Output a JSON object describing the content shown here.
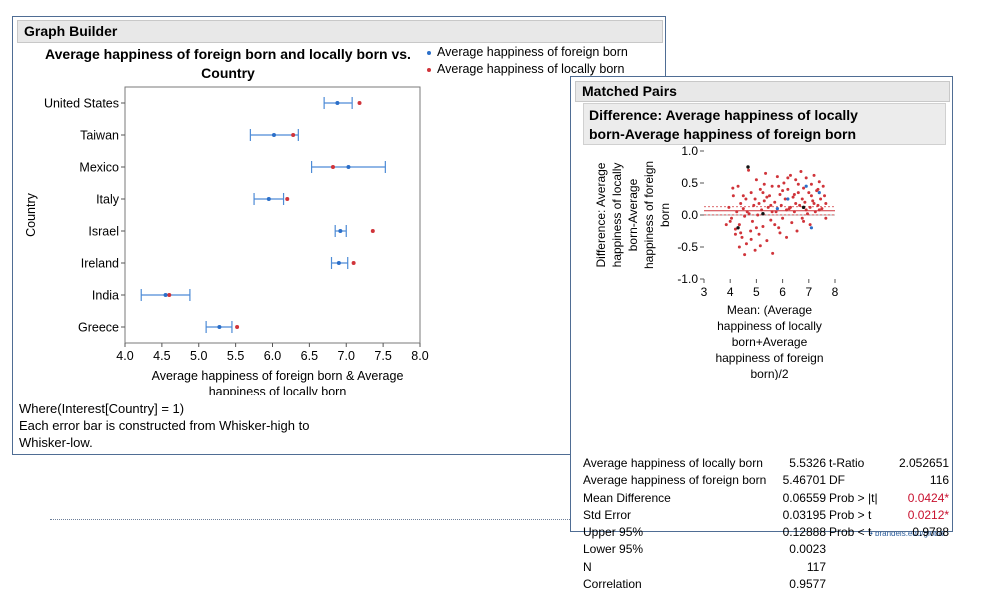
{
  "graph_builder": {
    "header": "Graph Builder",
    "title_line1": "Average happiness of foreign born and locally born vs.",
    "title_line2": "Country",
    "legend": [
      {
        "label": "Average happiness of foreign born",
        "color": "#2b6fc9"
      },
      {
        "label": "Average happiness of locally born",
        "color": "#d0343a"
      }
    ],
    "where_text": "Where(Interest[Country] = 1)",
    "note_line1": "Each error bar is constructed from Whisker-high to",
    "note_line2": "Whisker-low."
  },
  "matched_pairs": {
    "header": "Matched Pairs",
    "subtitle_line1": "Difference: Average happiness of locally",
    "subtitle_line2": "born-Average happiness of foreign born",
    "stats": [
      {
        "label": "Average happiness of locally born",
        "value": "5.5326",
        "label2": "t-Ratio",
        "value2": "2.052651",
        "red": false
      },
      {
        "label": "Average happiness of foreign born",
        "value": "5.46701",
        "label2": "DF",
        "value2": "116",
        "red": false
      },
      {
        "label": "Mean Difference",
        "value": "0.06559",
        "label2": "Prob > |t|",
        "value2": "0.0424*",
        "red": true
      },
      {
        "label": "Std Error",
        "value": "0.03195",
        "label2": "Prob > t",
        "value2": "0.0212*",
        "red": true
      },
      {
        "label": "Upper 95%",
        "value": "0.12888",
        "label2": "Prob < t",
        "value2": "0.9788",
        "red": false
      },
      {
        "label": "Lower 95%",
        "value": "0.0023",
        "label2": "",
        "value2": "",
        "red": false
      },
      {
        "label": "N",
        "value": "117",
        "label2": "",
        "value2": "",
        "red": false
      },
      {
        "label": "Correlation",
        "value": "0.9577",
        "label2": "",
        "value2": "",
        "red": false
      }
    ]
  },
  "footer": "• brandeis.edu/global",
  "chart_data": [
    {
      "type": "scatter",
      "orientation": "horizontal-dot-with-error-bars",
      "categories": [
        "United States",
        "Taiwan",
        "Mexico",
        "Italy",
        "Israel",
        "Ireland",
        "India",
        "Greece"
      ],
      "series": [
        {
          "name": "Average happiness of foreign born",
          "values": [
            6.88,
            6.02,
            7.03,
            5.95,
            6.92,
            6.9,
            4.55,
            5.28
          ],
          "whisker_low": [
            6.7,
            5.7,
            6.53,
            5.75,
            6.85,
            6.8,
            4.22,
            5.1
          ],
          "whisker_high": [
            7.08,
            6.35,
            7.53,
            6.15,
            7.0,
            7.02,
            4.88,
            5.45
          ]
        },
        {
          "name": "Average happiness of locally born",
          "values": [
            7.18,
            6.28,
            6.82,
            6.2,
            7.36,
            7.1,
            4.6,
            5.52
          ]
        }
      ],
      "xlabel_line1": "Average happiness of foreign born & Average",
      "xlabel_line2": "happiness of locally born",
      "ylabel": "Country",
      "xlim": [
        4.0,
        8.0
      ],
      "xticks": [
        "4.0",
        "4.5",
        "5.0",
        "5.5",
        "6.0",
        "6.5",
        "7.0",
        "7.5",
        "8.0"
      ],
      "legend_position": "top-right",
      "grid": false
    },
    {
      "type": "scatter",
      "ylabel_lines": [
        "Difference: Average",
        "happiness of locally",
        "born-Average",
        "happiness of foreign",
        "born"
      ],
      "xlabel_lines": [
        "Mean: (Average",
        "happiness of locally",
        "born+Average",
        "happiness of foreign",
        "born)/2"
      ],
      "xlim": [
        3,
        8
      ],
      "ylim": [
        -1.0,
        1.0
      ],
      "xticks": [
        "3",
        "4",
        "5",
        "6",
        "7",
        "8"
      ],
      "yticks": [
        "1.0",
        "0.5",
        "0.0",
        "-0.5",
        "-1.0"
      ],
      "mean_difference": 0.06559,
      "upper_95": 0.12888,
      "lower_95": 0.0023,
      "points": [
        [
          3.95,
          0.12
        ],
        [
          4.05,
          -0.05
        ],
        [
          4.12,
          0.3
        ],
        [
          4.2,
          -0.22
        ],
        [
          4.25,
          0.05
        ],
        [
          4.3,
          0.45
        ],
        [
          4.35,
          -0.15
        ],
        [
          4.4,
          0.18
        ],
        [
          4.45,
          -0.35
        ],
        [
          4.5,
          0.1
        ],
        [
          4.55,
          -0.02
        ],
        [
          4.6,
          0.25
        ],
        [
          4.62,
          -0.45
        ],
        [
          4.7,
          0.7
        ],
        [
          4.72,
          0.02
        ],
        [
          4.78,
          -0.25
        ],
        [
          4.8,
          0.35
        ],
        [
          4.85,
          -0.1
        ],
        [
          4.9,
          0.15
        ],
        [
          4.95,
          -0.55
        ],
        [
          5.0,
          0.55
        ],
        [
          5.05,
          0.0
        ],
        [
          5.1,
          -0.3
        ],
        [
          5.15,
          0.4
        ],
        [
          5.2,
          0.08
        ],
        [
          5.25,
          -0.18
        ],
        [
          5.3,
          0.22
        ],
        [
          5.35,
          0.65
        ],
        [
          5.4,
          -0.4
        ],
        [
          5.45,
          0.12
        ],
        [
          5.5,
          0.3
        ],
        [
          5.55,
          -0.08
        ],
        [
          5.6,
          0.45
        ],
        [
          5.62,
          -0.6
        ],
        [
          5.7,
          0.2
        ],
        [
          5.75,
          0.05
        ],
        [
          5.8,
          0.6
        ],
        [
          5.85,
          -0.2
        ],
        [
          5.9,
          0.32
        ],
        [
          5.95,
          0.15
        ],
        [
          6.0,
          -0.05
        ],
        [
          6.05,
          0.5
        ],
        [
          6.1,
          0.25
        ],
        [
          6.15,
          -0.35
        ],
        [
          6.2,
          0.4
        ],
        [
          6.25,
          0.1
        ],
        [
          6.3,
          0.62
        ],
        [
          6.35,
          -0.12
        ],
        [
          6.4,
          0.28
        ],
        [
          6.45,
          0.05
        ],
        [
          6.5,
          0.55
        ],
        [
          6.55,
          -0.25
        ],
        [
          6.6,
          0.35
        ],
        [
          6.65,
          0.15
        ],
        [
          6.7,
          0.68
        ],
        [
          6.75,
          -0.05
        ],
        [
          6.8,
          0.42
        ],
        [
          6.85,
          0.2
        ],
        [
          6.9,
          0.58
        ],
        [
          6.95,
          0.02
        ],
        [
          7.0,
          0.35
        ],
        [
          7.05,
          -0.15
        ],
        [
          7.1,
          0.48
        ],
        [
          7.15,
          0.22
        ],
        [
          7.2,
          0.62
        ],
        [
          7.25,
          0.05
        ],
        [
          7.3,
          0.38
        ],
        [
          7.35,
          0.15
        ],
        [
          7.4,
          0.52
        ],
        [
          7.45,
          0.25
        ],
        [
          7.5,
          0.1
        ],
        [
          7.55,
          0.45
        ],
        [
          7.6,
          0.3
        ],
        [
          7.65,
          -0.05
        ],
        [
          7.2,
          0.18
        ],
        [
          6.9,
          0.08
        ],
        [
          6.6,
          0.48
        ],
        [
          6.3,
          0.12
        ],
        [
          6.0,
          0.38
        ],
        [
          5.7,
          -0.15
        ],
        [
          5.4,
          0.28
        ],
        [
          5.1,
          0.18
        ],
        [
          4.8,
          -0.38
        ],
        [
          4.5,
          0.3
        ],
        [
          4.2,
          -0.3
        ],
        [
          4.0,
          -0.1
        ],
        [
          3.85,
          -0.15
        ],
        [
          4.35,
          -0.5
        ],
        [
          4.65,
          0.05
        ],
        [
          4.95,
          0.25
        ],
        [
          5.25,
          0.35
        ],
        [
          5.55,
          0.15
        ],
        [
          5.85,
          0.45
        ],
        [
          6.15,
          0.08
        ],
        [
          6.45,
          0.32
        ],
        [
          6.75,
          0.25
        ],
        [
          7.05,
          0.12
        ],
        [
          7.35,
          0.4
        ],
        [
          7.65,
          0.18
        ],
        [
          4.1,
          0.42
        ],
        [
          4.4,
          -0.28
        ],
        [
          5.0,
          -0.2
        ],
        [
          5.3,
          0.48
        ],
        [
          5.6,
          0.05
        ],
        [
          5.9,
          -0.28
        ],
        [
          6.2,
          0.58
        ],
        [
          6.5,
          0.18
        ],
        [
          6.8,
          -0.1
        ],
        [
          7.1,
          0.3
        ],
        [
          7.4,
          0.08
        ],
        [
          4.55,
          -0.62
        ],
        [
          5.15,
          -0.48
        ]
      ],
      "highlight_blue": [
        [
          6.9,
          0.45
        ],
        [
          7.4,
          0.35
        ],
        [
          7.1,
          -0.2
        ],
        [
          6.2,
          0.25
        ],
        [
          5.8,
          0.1
        ]
      ],
      "highlight_black": [
        [
          4.68,
          0.75
        ],
        [
          4.3,
          -0.2
        ],
        [
          5.25,
          0.02
        ],
        [
          6.8,
          0.12
        ]
      ]
    }
  ]
}
